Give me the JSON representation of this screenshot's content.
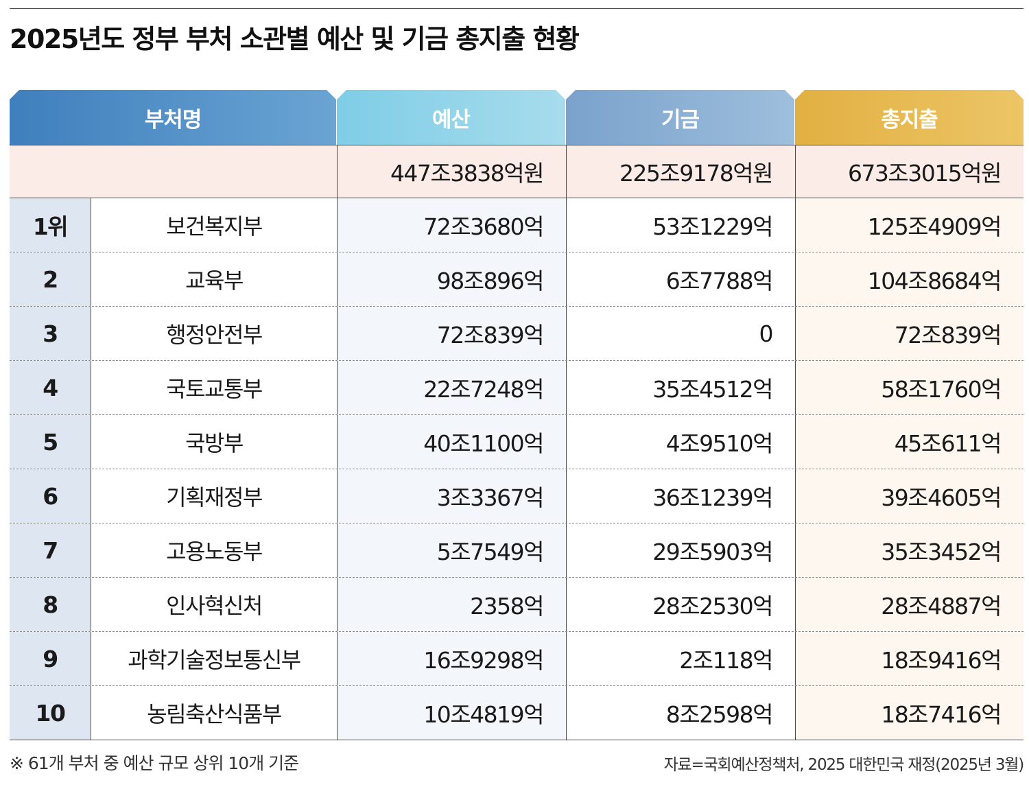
{
  "title": "2025년도 정부 부처 소관별 예산 및 기금 총지출 현황",
  "headers": {
    "name": "부처명",
    "budget": "예산",
    "fund": "기금",
    "total": "총지출"
  },
  "totals": {
    "budget": "447조3838억원",
    "fund": "225조9178억원",
    "total": "673조3015억원"
  },
  "rows": [
    {
      "rank": "1위",
      "name": "보건복지부",
      "budget": "72조3680억",
      "fund": "53조1229억",
      "total": "125조4909억"
    },
    {
      "rank": "2",
      "name": "교육부",
      "budget": "98조896억",
      "fund": "6조7788억",
      "total": "104조8684억"
    },
    {
      "rank": "3",
      "name": "행정안전부",
      "budget": "72조839억",
      "fund": "0",
      "total": "72조839억"
    },
    {
      "rank": "4",
      "name": "국토교통부",
      "budget": "22조7248억",
      "fund": "35조4512억",
      "total": "58조1760억"
    },
    {
      "rank": "5",
      "name": "국방부",
      "budget": "40조1100억",
      "fund": "4조9510억",
      "total": "45조611억"
    },
    {
      "rank": "6",
      "name": "기획재정부",
      "budget": "3조3367억",
      "fund": "36조1239억",
      "total": "39조4605억"
    },
    {
      "rank": "7",
      "name": "고용노동부",
      "budget": "5조7549억",
      "fund": "29조5903억",
      "total": "35조3452억"
    },
    {
      "rank": "8",
      "name": "인사혁신처",
      "budget": "2358억",
      "fund": "28조2530억",
      "total": "28조4887억"
    },
    {
      "rank": "9",
      "name": "과학기술정보통신부",
      "budget": "16조9298억",
      "fund": "2조118억",
      "total": "18조9416억"
    },
    {
      "rank": "10",
      "name": "농림축산식품부",
      "budget": "10조4819억",
      "fund": "8조2598억",
      "total": "18조7416억"
    }
  ],
  "footnote": "※ 61개 부처 중 예산 규모 상위 10개 기준",
  "source": "자료=국회예산정책처, 2025 대한민국 재정(2025년 3월)",
  "colors": {
    "header_name": "#4f8ec8",
    "header_budget": "#8fd3e9",
    "header_fund": "#8cb1d6",
    "header_total": "#e7ba52",
    "total_row_bg": "#fbece8",
    "rank_bg": "#dde6f1"
  }
}
